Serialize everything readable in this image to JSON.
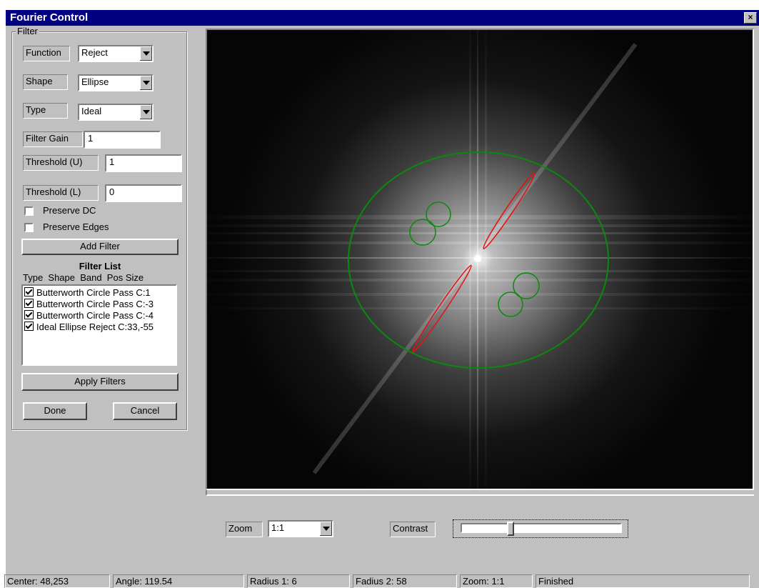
{
  "window": {
    "title": "Fourier Control",
    "close_glyph": "×"
  },
  "filter_group": {
    "label": "Filter",
    "function": {
      "label": "Function",
      "value": "Reject"
    },
    "shape": {
      "label": "Shape",
      "value": "Ellipse"
    },
    "type": {
      "label": "Type",
      "value": "Ideal"
    },
    "filter_gain": {
      "label": "Filter Gain",
      "value": "1"
    },
    "threshold_u": {
      "label": "Threshold (U)",
      "value": "1"
    },
    "threshold_l": {
      "label": "Threshold (L)",
      "value": "0"
    },
    "preserve_dc": {
      "label": "Preserve DC",
      "checked": false
    },
    "preserve_edges": {
      "label": "Preserve Edges",
      "checked": false
    },
    "add_filter_label": "Add Filter",
    "filter_list_title": "Filter List",
    "filter_list_header": "Type  Shape  Band  Pos Size",
    "filter_list_items": [
      {
        "label": "Butterworth Circle Pass C:1",
        "checked": true
      },
      {
        "label": "Butterworth Circle Pass C:-3",
        "checked": true
      },
      {
        "label": "Butterworth Circle Pass C:-4",
        "checked": true
      },
      {
        "label": "Ideal Ellipse Reject C:33,-55",
        "checked": true
      }
    ],
    "apply_filters_label": "Apply Filters",
    "done_label": "Done",
    "cancel_label": "Cancel"
  },
  "bottom_controls": {
    "zoom_label": "Zoom",
    "zoom_value": "1:1",
    "contrast_label": "Contrast",
    "contrast_level": 0.3
  },
  "status": {
    "center": "Center:  48,253",
    "angle": "Angle: 119.54",
    "radius1": "Radius 1:   6",
    "radius2": "Fadius 2:  58",
    "zoom": "Zoom:  1:1",
    "state": "Finished"
  },
  "colors": {
    "title_bar": "#000080",
    "overlay_green": "#0a8a0a",
    "overlay_red": "#e81010"
  }
}
